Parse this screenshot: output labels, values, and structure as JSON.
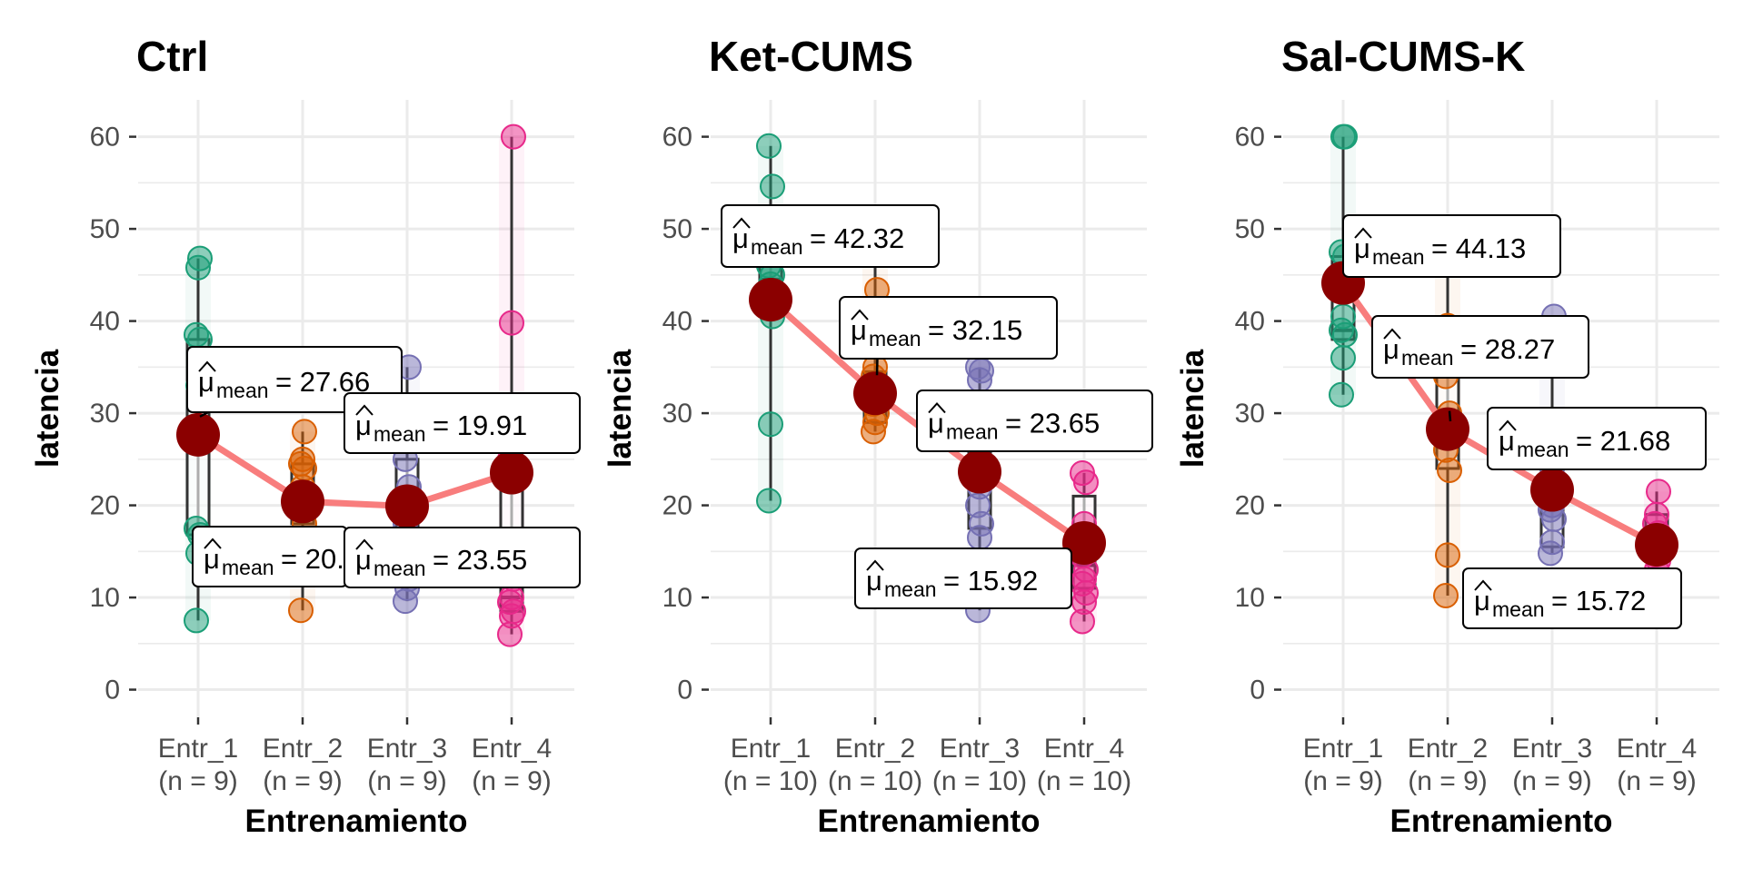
{
  "chart_data": [
    {
      "type": "box-violin-scatter",
      "title": "Ctrl",
      "xlabel": "Entrenamiento",
      "ylabel": "latencia",
      "ylim": [
        -3,
        64
      ],
      "yticks": [
        "0",
        "10",
        "20",
        "30",
        "40",
        "50",
        "60"
      ],
      "grid": true,
      "categories": [
        "Entr_1",
        "Entr_2",
        "Entr_3",
        "Entr_4"
      ],
      "category_counts": [
        "(n = 9)",
        "(n = 9)",
        "(n = 9)",
        "(n = 9)"
      ],
      "points": [
        [
          7.5,
          14.8,
          16.8,
          17.5,
          33.0,
          38.0,
          38.5,
          45.8,
          46.8
        ],
        [
          8.6,
          15.0,
          18.0,
          20.0,
          22.0,
          24.0,
          24.5,
          25.0,
          28.0
        ],
        [
          9.6,
          11.0,
          12.0,
          18.0,
          20.0,
          22.0,
          25.0,
          27.0,
          35.0
        ],
        [
          6.0,
          8.0,
          8.5,
          9.5,
          10.0,
          12.0,
          25.0,
          39.8,
          60.0
        ]
      ],
      "boxes": [
        {
          "q1": 16.8,
          "median": 33.0,
          "q3": 38.0,
          "min": 7.5,
          "max": 46.8
        },
        {
          "q1": 18.0,
          "median": 22.0,
          "q3": 24.5,
          "min": 8.6,
          "max": 28.0
        },
        {
          "q1": 12.0,
          "median": 20.0,
          "q3": 25.0,
          "min": 9.6,
          "max": 35.0
        },
        {
          "q1": 8.5,
          "median": 10.0,
          "q3": 25.0,
          "min": 6.0,
          "max": 60.0
        }
      ],
      "means": [
        27.66,
        20.42,
        19.91,
        23.55
      ],
      "mean_labels": [
        {
          "symbol": "μ",
          "sub": "mean",
          "value": "= 27.66"
        },
        {
          "symbol": "μ",
          "sub": "mean",
          "value": "= 20.42"
        },
        {
          "symbol": "μ",
          "sub": "mean",
          "value": "= 19.91"
        },
        {
          "symbol": "μ",
          "sub": "mean",
          "value": "= 23.55"
        }
      ]
    },
    {
      "type": "box-violin-scatter",
      "title": "Ket-CUMS",
      "xlabel": "Entrenamiento",
      "ylabel": "latencia",
      "ylim": [
        -3,
        64
      ],
      "yticks": [
        "0",
        "10",
        "20",
        "30",
        "40",
        "50",
        "60"
      ],
      "grid": true,
      "categories": [
        "Entr_1",
        "Entr_2",
        "Entr_3",
        "Entr_4"
      ],
      "category_counts": [
        "(n = 10)",
        "(n = 10)",
        "(n = 10)",
        "(n = 10)"
      ],
      "points": [
        [
          20.5,
          28.8,
          40.5,
          42.0,
          44.0,
          45.0,
          46.0,
          48.0,
          54.6,
          59.0
        ],
        [
          28.0,
          29.0,
          30.0,
          31.0,
          32.0,
          33.0,
          34.0,
          35.0,
          43.4,
          49.8
        ],
        [
          8.6,
          16.5,
          18.0,
          20.0,
          22.0,
          24.0,
          28.0,
          33.6,
          34.6,
          35.0
        ],
        [
          7.4,
          9.5,
          10.5,
          11.5,
          12.0,
          13.0,
          14.5,
          18.0,
          22.5,
          23.5
        ]
      ],
      "boxes": [
        {
          "q1": 40.5,
          "median": 44.5,
          "q3": 47.0,
          "min": 20.5,
          "max": 59.0
        },
        {
          "q1": 29.0,
          "median": 32.5,
          "q3": 34.5,
          "min": 28.0,
          "max": 49.8
        },
        {
          "q1": 17.5,
          "median": 23.0,
          "q3": 30.0,
          "min": 8.6,
          "max": 35.0
        },
        {
          "q1": 11.0,
          "median": 13.5,
          "q3": 21.0,
          "min": 7.4,
          "max": 23.5
        }
      ],
      "means": [
        42.32,
        32.15,
        23.65,
        15.92
      ],
      "mean_labels": [
        {
          "symbol": "μ",
          "sub": "mean",
          "value": "= 42.32"
        },
        {
          "symbol": "μ",
          "sub": "mean",
          "value": "= 32.15"
        },
        {
          "symbol": "μ",
          "sub": "mean",
          "value": "= 23.65"
        },
        {
          "symbol": "μ",
          "sub": "mean",
          "value": "= 15.92"
        }
      ]
    },
    {
      "type": "box-violin-scatter",
      "title": "Sal-CUMS-K",
      "xlabel": "Entrenamiento",
      "ylabel": "latencia",
      "ylim": [
        -3,
        64
      ],
      "yticks": [
        "0",
        "10",
        "20",
        "30",
        "40",
        "50",
        "60"
      ],
      "grid": true,
      "categories": [
        "Entr_1",
        "Entr_2",
        "Entr_3",
        "Entr_4"
      ],
      "category_counts": [
        "(n = 9)",
        "(n = 9)",
        "(n = 9)",
        "(n = 9)"
      ],
      "points": [
        [
          32.0,
          36.0,
          38.5,
          39.0,
          40.5,
          47.0,
          47.5,
          60.0,
          60.0
        ],
        [
          10.2,
          14.6,
          23.8,
          26.0,
          28.0,
          30.0,
          34.0,
          39.5,
          50.2
        ],
        [
          14.8,
          16.0,
          18.5,
          19.5,
          20.0,
          21.0,
          22.0,
          24.0,
          40.5
        ],
        [
          12.0,
          13.0,
          14.0,
          15.0,
          16.0,
          17.0,
          18.0,
          19.0,
          21.5
        ]
      ],
      "boxes": [
        {
          "q1": 38.0,
          "median": 39.0,
          "q3": 47.0,
          "min": 32.0,
          "max": 60.0
        },
        {
          "q1": 24.0,
          "median": 28.0,
          "q3": 34.0,
          "min": 10.2,
          "max": 50.2
        },
        {
          "q1": 15.5,
          "median": 20.0,
          "q3": 23.0,
          "min": 14.8,
          "max": 40.5
        },
        {
          "q1": 14.0,
          "median": 16.0,
          "q3": 19.0,
          "min": 12.0,
          "max": 21.5
        }
      ],
      "means": [
        44.13,
        28.27,
        21.68,
        15.72
      ],
      "mean_labels": [
        {
          "symbol": "μ",
          "sub": "mean",
          "value": "= 44.13"
        },
        {
          "symbol": "μ",
          "sub": "mean",
          "value": "= 28.27"
        },
        {
          "symbol": "μ",
          "sub": "mean",
          "value": "= 21.68"
        },
        {
          "symbol": "μ",
          "sub": "mean",
          "value": "= 15.72"
        }
      ]
    }
  ],
  "colors": {
    "groups": [
      "#1b9e77",
      "#d95f02",
      "#7570b3",
      "#e7298a"
    ],
    "mean_point": "#8b0000",
    "mean_line": "#f87d7d",
    "grid": "#ebebeb",
    "box_line": "#333333"
  }
}
